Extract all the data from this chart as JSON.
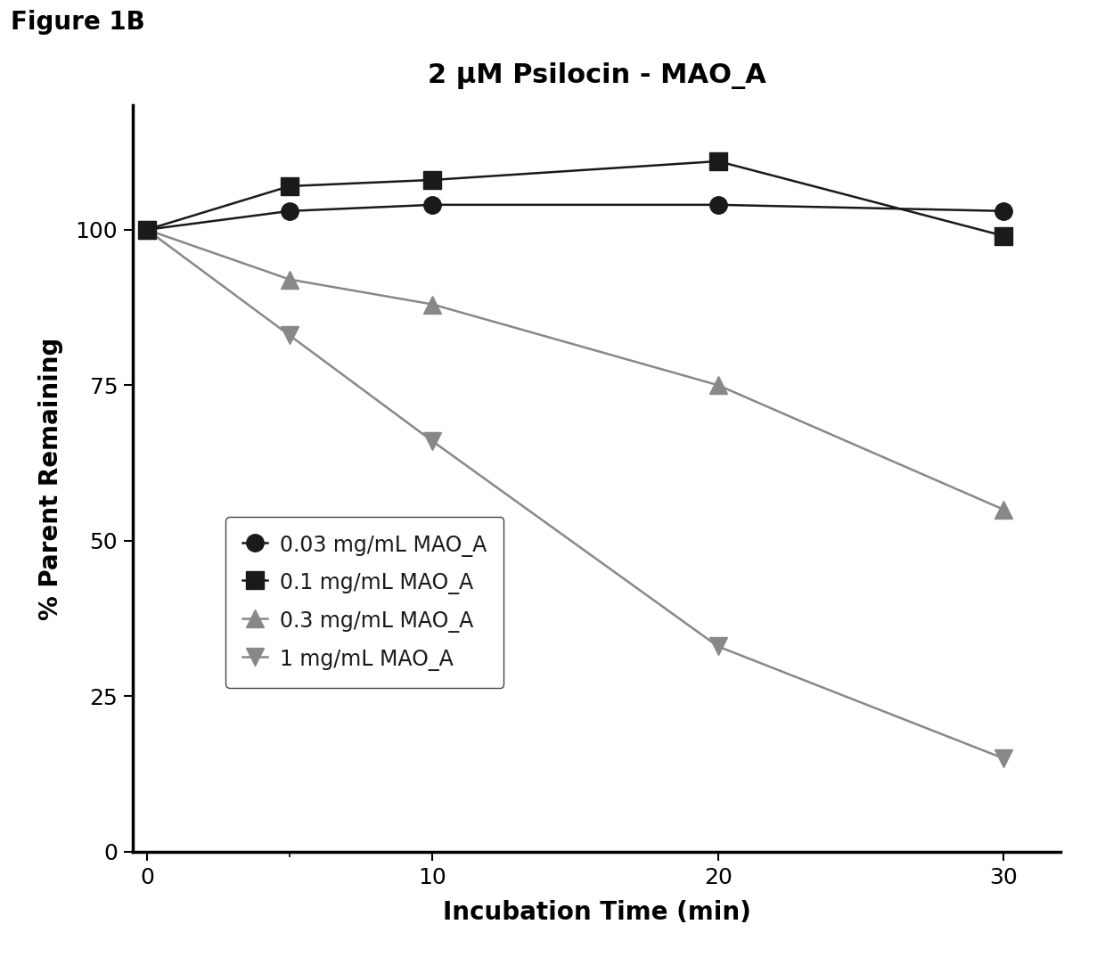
{
  "title": "2 μM Psilocin - MAO_A",
  "figure_label": "Figure 1B",
  "xlabel": "Incubation Time (min)",
  "ylabel": "% Parent Remaining",
  "x_values": [
    0,
    5,
    10,
    20,
    30
  ],
  "series": [
    {
      "label": "0.03 mg/mL MAO_A",
      "y": [
        100,
        103,
        104,
        104,
        103
      ],
      "color": "#1a1a1a",
      "marker": "o",
      "markersize": 14,
      "linewidth": 1.8,
      "zorder": 4
    },
    {
      "label": "0.1 mg/mL MAO_A",
      "y": [
        100,
        107,
        108,
        111,
        99
      ],
      "color": "#1a1a1a",
      "marker": "s",
      "markersize": 14,
      "linewidth": 1.8,
      "zorder": 3
    },
    {
      "label": "0.3 mg/mL MAO_A",
      "y": [
        100,
        92,
        88,
        75,
        55
      ],
      "color": "#888888",
      "marker": "^",
      "markersize": 14,
      "linewidth": 1.8,
      "zorder": 2
    },
    {
      "label": "1 mg/mL MAO_A",
      "y": [
        100,
        83,
        66,
        33,
        15
      ],
      "color": "#888888",
      "marker": "v",
      "markersize": 14,
      "linewidth": 1.8,
      "zorder": 1
    }
  ],
  "xlim": [
    -0.5,
    32
  ],
  "ylim": [
    0,
    120
  ],
  "yticks": [
    0,
    25,
    50,
    75,
    100
  ],
  "xticks": [
    0,
    10,
    20,
    30
  ],
  "background_color": "#ffffff",
  "title_fontsize": 22,
  "label_fontsize": 20,
  "tick_fontsize": 18,
  "legend_fontsize": 17
}
